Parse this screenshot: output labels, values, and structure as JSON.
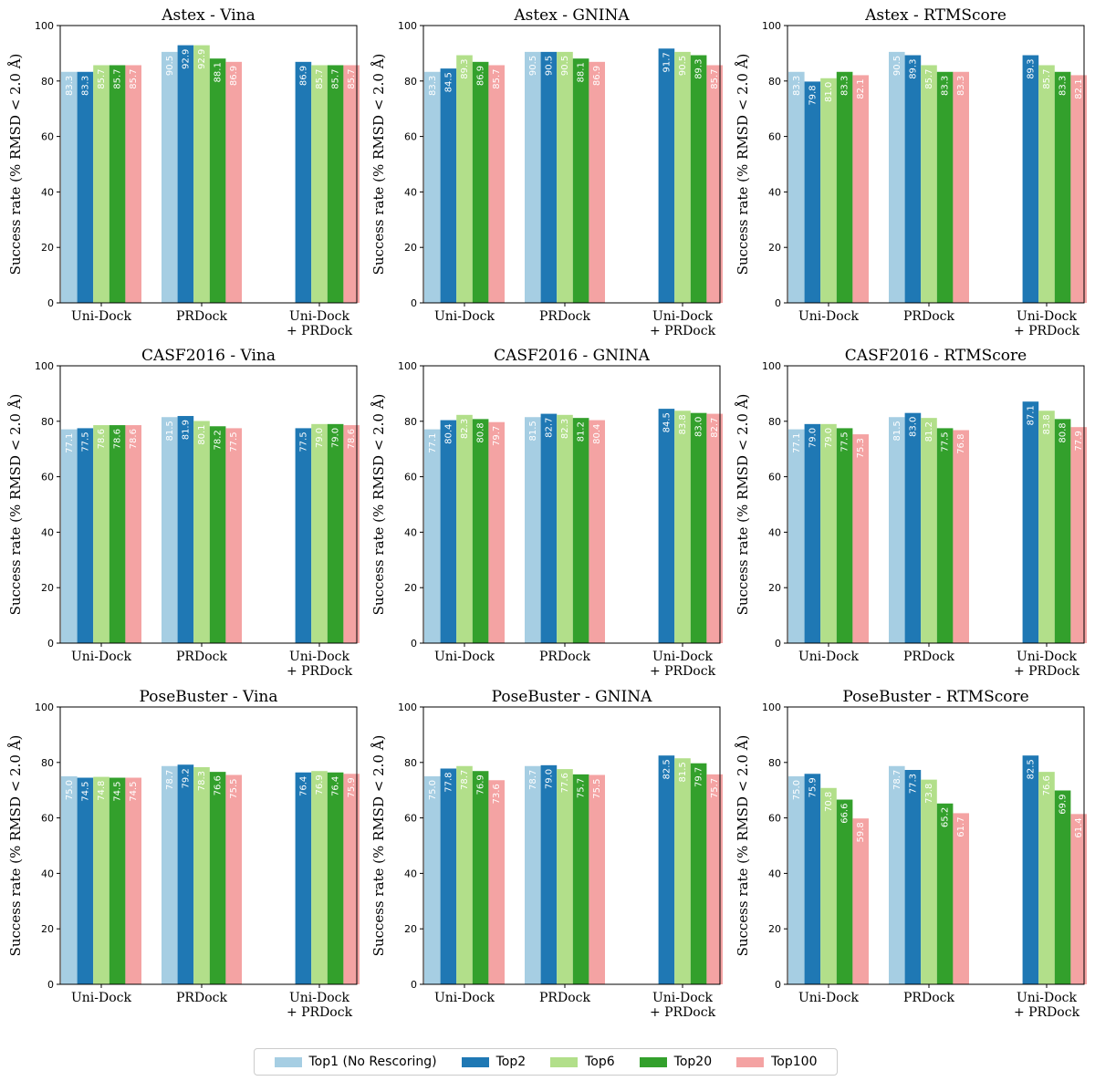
{
  "colors": {
    "series": [
      "#a6cee3",
      "#1f78b4",
      "#b2df8a",
      "#33a02c",
      "#f4a3a3"
    ],
    "text_on_bar": "#ffffff"
  },
  "legend": [
    "Top1 (No Rescoring)",
    "Top2",
    "Top6",
    "Top20",
    "Top100"
  ],
  "chart_data": [
    {
      "type": "bar",
      "title": "Astex - Vina",
      "ylabel": "Success rate (% RMSD < 2.0 Å)",
      "ylim": [
        0,
        100
      ],
      "yticks": [
        "0",
        "20",
        "40",
        "60",
        "80",
        "100"
      ],
      "categories": [
        "Uni-Dock",
        "PRDock",
        "Uni-Dock\n+ PRDock"
      ],
      "series": [
        {
          "name": "Top1 (No Rescoring)",
          "values": [
            83.3,
            90.5,
            null
          ]
        },
        {
          "name": "Top2",
          "values": [
            83.3,
            92.9,
            86.9
          ]
        },
        {
          "name": "Top6",
          "values": [
            85.7,
            92.9,
            85.7
          ]
        },
        {
          "name": "Top20",
          "values": [
            85.7,
            88.1,
            85.7
          ]
        },
        {
          "name": "Top100",
          "values": [
            85.7,
            86.9,
            85.7
          ]
        }
      ],
      "labels": [
        [
          "83.3",
          "90.5",
          ""
        ],
        [
          "83.3",
          "92.9",
          "86.9"
        ],
        [
          "85.7",
          "92.9",
          "85.7"
        ],
        [
          "85.7",
          "88.1",
          "85.7"
        ],
        [
          "85.7",
          "86.9",
          "85.7"
        ]
      ]
    },
    {
      "type": "bar",
      "title": "Astex - GNINA",
      "ylabel": "Success rate (% RMSD < 2.0 Å)",
      "ylim": [
        0,
        100
      ],
      "yticks": [
        "0",
        "20",
        "40",
        "60",
        "80",
        "100"
      ],
      "categories": [
        "Uni-Dock",
        "PRDock",
        "Uni-Dock\n+ PRDock"
      ],
      "series": [
        {
          "name": "Top1 (No Rescoring)",
          "values": [
            83.3,
            90.5,
            null
          ]
        },
        {
          "name": "Top2",
          "values": [
            84.5,
            90.5,
            91.7
          ]
        },
        {
          "name": "Top6",
          "values": [
            89.3,
            90.5,
            90.5
          ]
        },
        {
          "name": "Top20",
          "values": [
            86.9,
            88.1,
            89.3
          ]
        },
        {
          "name": "Top100",
          "values": [
            85.7,
            86.9,
            85.7
          ]
        }
      ],
      "labels": [
        [
          "83.3",
          "90.5",
          ""
        ],
        [
          "84.5",
          "90.5",
          "91.7"
        ],
        [
          "89.3",
          "90.5",
          "90.5"
        ],
        [
          "86.9",
          "88.1",
          "89.3"
        ],
        [
          "85.7",
          "86.9",
          "85.7"
        ]
      ]
    },
    {
      "type": "bar",
      "title": "Astex - RTMScore",
      "ylabel": "Success rate (% RMSD < 2.0 Å)",
      "ylim": [
        0,
        100
      ],
      "yticks": [
        "0",
        "20",
        "40",
        "60",
        "80",
        "100"
      ],
      "categories": [
        "Uni-Dock",
        "PRDock",
        "Uni-Dock\n+ PRDock"
      ],
      "series": [
        {
          "name": "Top1 (No Rescoring)",
          "values": [
            83.3,
            90.5,
            null
          ]
        },
        {
          "name": "Top2",
          "values": [
            79.8,
            89.3,
            89.3
          ]
        },
        {
          "name": "Top6",
          "values": [
            81.0,
            85.7,
            85.7
          ]
        },
        {
          "name": "Top20",
          "values": [
            83.3,
            83.3,
            83.3
          ]
        },
        {
          "name": "Top100",
          "values": [
            82.1,
            83.3,
            82.1
          ]
        }
      ],
      "labels": [
        [
          "83.3",
          "90.5",
          ""
        ],
        [
          "79.8",
          "89.3",
          "89.3"
        ],
        [
          "81.0",
          "85.7",
          "85.7"
        ],
        [
          "83.3",
          "83.3",
          "83.3"
        ],
        [
          "82.1",
          "83.3",
          "82.1"
        ]
      ]
    },
    {
      "type": "bar",
      "title": "CASF2016 - Vina",
      "ylabel": "Success rate (% RMSD < 2.0 Å)",
      "ylim": [
        0,
        100
      ],
      "yticks": [
        "0",
        "20",
        "40",
        "60",
        "80",
        "100"
      ],
      "categories": [
        "Uni-Dock",
        "PRDock",
        "Uni-Dock\n+ PRDock"
      ],
      "series": [
        {
          "name": "Top1 (No Rescoring)",
          "values": [
            77.1,
            81.5,
            null
          ]
        },
        {
          "name": "Top2",
          "values": [
            77.5,
            81.9,
            77.5
          ]
        },
        {
          "name": "Top6",
          "values": [
            78.6,
            80.1,
            79.0
          ]
        },
        {
          "name": "Top20",
          "values": [
            78.6,
            78.2,
            79.0
          ]
        },
        {
          "name": "Top100",
          "values": [
            78.6,
            77.5,
            78.6
          ]
        }
      ],
      "labels": [
        [
          "77.1",
          "81.5",
          ""
        ],
        [
          "77.5",
          "81.9",
          "77.5"
        ],
        [
          "78.6",
          "80.1",
          "79.0"
        ],
        [
          "78.6",
          "78.2",
          "79.0"
        ],
        [
          "78.6",
          "77.5",
          "78.6"
        ]
      ]
    },
    {
      "type": "bar",
      "title": "CASF2016 - GNINA",
      "ylabel": "Success rate (% RMSD < 2.0 Å)",
      "ylim": [
        0,
        100
      ],
      "yticks": [
        "0",
        "20",
        "40",
        "60",
        "80",
        "100"
      ],
      "categories": [
        "Uni-Dock",
        "PRDock",
        "Uni-Dock\n+ PRDock"
      ],
      "series": [
        {
          "name": "Top1 (No Rescoring)",
          "values": [
            77.1,
            81.5,
            null
          ]
        },
        {
          "name": "Top2",
          "values": [
            80.4,
            82.7,
            84.5
          ]
        },
        {
          "name": "Top6",
          "values": [
            82.3,
            82.3,
            83.8
          ]
        },
        {
          "name": "Top20",
          "values": [
            80.8,
            81.2,
            83.0
          ]
        },
        {
          "name": "Top100",
          "values": [
            79.7,
            80.4,
            82.7
          ]
        }
      ],
      "labels": [
        [
          "77.1",
          "81.5",
          ""
        ],
        [
          "80.4",
          "82.7",
          "84.5"
        ],
        [
          "82.3",
          "82.3",
          "83.8"
        ],
        [
          "80.8",
          "81.2",
          "83.0"
        ],
        [
          "79.7",
          "80.4",
          "82.7"
        ]
      ]
    },
    {
      "type": "bar",
      "title": "CASF2016 - RTMScore",
      "ylabel": "Success rate (% RMSD < 2.0 Å)",
      "ylim": [
        0,
        100
      ],
      "yticks": [
        "0",
        "20",
        "40",
        "60",
        "80",
        "100"
      ],
      "categories": [
        "Uni-Dock",
        "PRDock",
        "Uni-Dock\n+ PRDock"
      ],
      "series": [
        {
          "name": "Top1 (No Rescoring)",
          "values": [
            77.1,
            81.5,
            null
          ]
        },
        {
          "name": "Top2",
          "values": [
            79.0,
            83.0,
            87.1
          ]
        },
        {
          "name": "Top6",
          "values": [
            79.0,
            81.2,
            83.8
          ]
        },
        {
          "name": "Top20",
          "values": [
            77.5,
            77.5,
            80.8
          ]
        },
        {
          "name": "Top100",
          "values": [
            75.3,
            76.8,
            77.9
          ]
        }
      ],
      "labels": [
        [
          "77.1",
          "81.5",
          ""
        ],
        [
          "79.0",
          "83.0",
          "87.1"
        ],
        [
          "79.0",
          "81.2",
          "83.8"
        ],
        [
          "77.5",
          "77.5",
          "80.8"
        ],
        [
          "75.3",
          "76.8",
          "77.9"
        ]
      ]
    },
    {
      "type": "bar",
      "title": "PoseBuster - Vina",
      "ylabel": "Success rate (% RMSD < 2.0 Å)",
      "ylim": [
        0,
        100
      ],
      "yticks": [
        "0",
        "20",
        "40",
        "60",
        "80",
        "100"
      ],
      "categories": [
        "Uni-Dock",
        "PRDock",
        "Uni-Dock\n+ PRDock"
      ],
      "series": [
        {
          "name": "Top1 (No Rescoring)",
          "values": [
            75.0,
            78.7,
            null
          ]
        },
        {
          "name": "Top2",
          "values": [
            74.5,
            79.2,
            76.4
          ]
        },
        {
          "name": "Top6",
          "values": [
            74.8,
            78.3,
            76.9
          ]
        },
        {
          "name": "Top20",
          "values": [
            74.5,
            76.6,
            76.4
          ]
        },
        {
          "name": "Top100",
          "values": [
            74.5,
            75.5,
            75.9
          ]
        }
      ],
      "labels": [
        [
          "75.0",
          "78.7",
          ""
        ],
        [
          "74.5",
          "79.2",
          "76.4"
        ],
        [
          "74.8",
          "78.3",
          "76.9"
        ],
        [
          "74.5",
          "76.6",
          "76.4"
        ],
        [
          "74.5",
          "75.5",
          "75.9"
        ]
      ]
    },
    {
      "type": "bar",
      "title": "PoseBuster - GNINA",
      "ylabel": "Success rate (% RMSD < 2.0 Å)",
      "ylim": [
        0,
        100
      ],
      "yticks": [
        "0",
        "20",
        "40",
        "60",
        "80",
        "100"
      ],
      "categories": [
        "Uni-Dock",
        "PRDock",
        "Uni-Dock\n+ PRDock"
      ],
      "series": [
        {
          "name": "Top1 (No Rescoring)",
          "values": [
            75.0,
            78.7,
            null
          ]
        },
        {
          "name": "Top2",
          "values": [
            77.8,
            79.0,
            82.5
          ]
        },
        {
          "name": "Top6",
          "values": [
            78.7,
            77.6,
            81.5
          ]
        },
        {
          "name": "Top20",
          "values": [
            76.9,
            75.7,
            79.7
          ]
        },
        {
          "name": "Top100",
          "values": [
            73.6,
            75.5,
            75.7
          ]
        }
      ],
      "labels": [
        [
          "75.0",
          "78.7",
          ""
        ],
        [
          "77.8",
          "79.0",
          "82.5"
        ],
        [
          "78.7",
          "77.6",
          "81.5"
        ],
        [
          "76.9",
          "75.7",
          "79.7"
        ],
        [
          "73.6",
          "75.5",
          "75.7"
        ]
      ]
    },
    {
      "type": "bar",
      "title": "PoseBuster - RTMScore",
      "ylabel": "Success rate (% RMSD < 2.0 Å)",
      "ylim": [
        0,
        100
      ],
      "yticks": [
        "0",
        "20",
        "40",
        "60",
        "80",
        "100"
      ],
      "categories": [
        "Uni-Dock",
        "PRDock",
        "Uni-Dock\n+ PRDock"
      ],
      "series": [
        {
          "name": "Top1 (No Rescoring)",
          "values": [
            75.0,
            78.7,
            null
          ]
        },
        {
          "name": "Top2",
          "values": [
            75.9,
            77.3,
            82.5
          ]
        },
        {
          "name": "Top6",
          "values": [
            70.8,
            73.8,
            76.6
          ]
        },
        {
          "name": "Top20",
          "values": [
            66.6,
            65.2,
            69.9
          ]
        },
        {
          "name": "Top100",
          "values": [
            59.8,
            61.7,
            61.4
          ]
        }
      ],
      "labels": [
        [
          "75.0",
          "78.7",
          ""
        ],
        [
          "75.9",
          "77.3",
          "82.5"
        ],
        [
          "70.8",
          "73.8",
          "76.6"
        ],
        [
          "66.6",
          "65.2",
          "69.9"
        ],
        [
          "59.8",
          "61.7",
          "61.4"
        ]
      ]
    }
  ]
}
